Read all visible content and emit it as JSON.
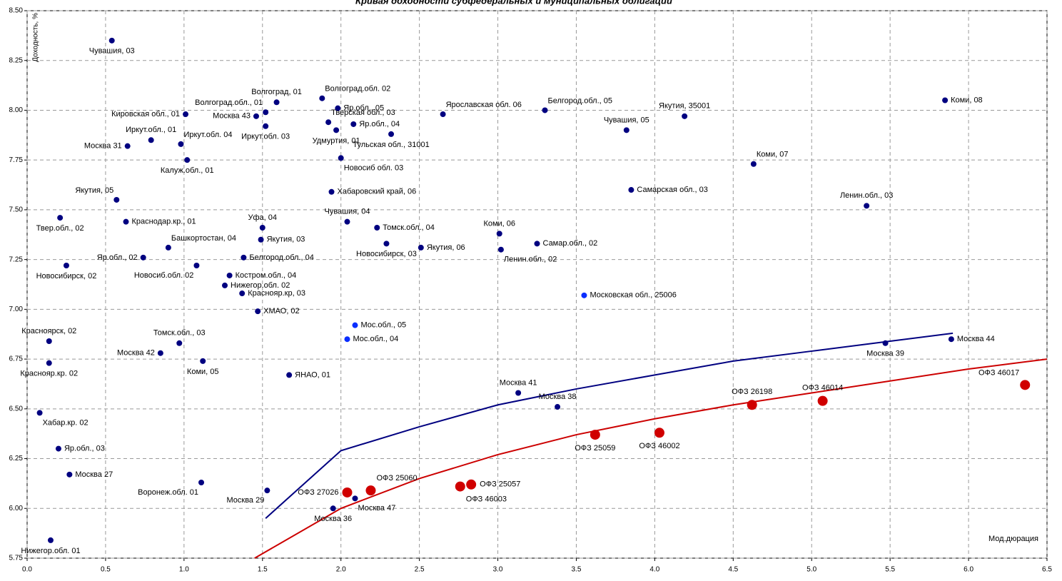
{
  "chart_data": {
    "type": "scatter",
    "title": "Кривая доходности субфедеральных и муниципальных облигаций",
    "y_label": "Доходность, %",
    "x_label": "Мод.дюрация",
    "xlim": [
      0,
      6.5
    ],
    "ylim": [
      5.75,
      8.5
    ],
    "xticks": [
      {
        "value": 0,
        "label": "0.0"
      },
      0.5,
      {
        "value": 1,
        "label": "1.0"
      },
      1.5,
      {
        "value": 2,
        "label": "2.0"
      },
      2.5,
      {
        "value": 3,
        "label": "3.0"
      },
      3.5,
      {
        "value": 4,
        "label": "4.0"
      },
      4.5,
      {
        "value": 5,
        "label": "5.0"
      },
      5.5,
      {
        "value": 6,
        "label": "6.0"
      },
      6.5
    ],
    "yticks": [
      {
        "value": 5.75,
        "label": "5.75"
      },
      {
        "value": 6,
        "label": "6.00"
      },
      {
        "value": 6.25,
        "label": "6.25"
      },
      {
        "value": 6.5,
        "label": "6.50"
      },
      {
        "value": 6.75,
        "label": "6.75"
      },
      {
        "value": 7,
        "label": "7.00"
      },
      {
        "value": 7.25,
        "label": "7.25"
      },
      {
        "value": 7.5,
        "label": "7.50"
      },
      {
        "value": 7.75,
        "label": "7.75"
      },
      {
        "value": 8,
        "label": "8.00"
      },
      {
        "value": 8.25,
        "label": "8.25"
      },
      {
        "value": 8.5,
        "label": "8.50"
      }
    ],
    "grid": true,
    "series": [
      {
        "color": "#000080",
        "labels": [
          "Чувашия, 03",
          "Коми, 08",
          "Волгоград.обл. 02",
          "Волгоград, 01",
          "Яр.обл., 05",
          "Волгоград.обл., 01",
          "Москва 43",
          "Кировская обл., 01",
          "Ярославская обл. 06",
          "Белгород.обл., 05",
          "Якутия, 35001",
          "Тверская обл., 03",
          "Иркут.обл. 03",
          "Яр.обл., 04",
          "Удмуртия, 01",
          "Чувашия, 05",
          "Тульская обл., 31001",
          "Иркут.обл., 01",
          "Москва 31",
          "Иркут.обл. 04",
          "Калуж.обл., 01",
          "Новосиб обл. 03",
          "Коми, 07",
          "Якутия, 05",
          "Хабаровский край, 06",
          "Самарская обл., 03",
          "Ленин.обл., 03",
          "Твер.обл., 02",
          "Краснодар.кр., 01",
          "Чувашия, 04",
          "Томск.обл., 04",
          "Уфа, 04",
          "Коми, 06",
          "Якутия, 03",
          "Самар.обл., 02",
          "Новосибирск, 03",
          "Якутия, 06",
          "Башкортостан, 04",
          "Ленин.обл., 02",
          "Яр.обл., 02",
          "Белгород.обл., 04",
          "Новосибирск, 02",
          "Новосиб.обл. 02",
          "Костром.обл., 04",
          "Нижегор.обл. 02",
          "Краснояр.кр, 03",
          "ХМАО, 02",
          "Красноярск, 02",
          "Томск.обл., 03",
          "Москва 39",
          "Москва 44",
          "Москва 42",
          "Коми, 05",
          "Краснояр.кр. 02",
          "ЯНАО, 01",
          "Москва 41",
          "Москва 38",
          "Хабар.кр. 02",
          "Яр.обл., 03",
          "Москва 27",
          "Воронеж.обл. 01",
          "Москва 29",
          "Москва 47",
          "Москва 36",
          "Нижегор.обл. 01"
        ],
        "x": [
          0.54,
          5.85,
          1.88,
          1.59,
          1.98,
          1.52,
          1.46,
          1.01,
          2.65,
          3.3,
          4.19,
          1.92,
          1.52,
          2.08,
          1.97,
          3.82,
          2.32,
          0.79,
          0.64,
          0.98,
          1.02,
          2.0,
          4.63,
          0.57,
          1.94,
          3.85,
          5.35,
          0.21,
          0.63,
          2.04,
          2.23,
          1.5,
          3.01,
          1.49,
          3.25,
          2.29,
          2.51,
          0.9,
          3.02,
          0.74,
          1.38,
          0.25,
          1.08,
          1.29,
          1.26,
          1.37,
          1.47,
          0.14,
          0.97,
          5.47,
          5.89,
          0.85,
          1.12,
          0.14,
          1.67,
          3.13,
          3.38,
          0.08,
          0.2,
          0.27,
          1.11,
          1.53,
          2.09,
          1.95,
          0.15
        ],
        "values": [
          8.35,
          8.05,
          8.06,
          8.04,
          8.01,
          7.99,
          7.97,
          7.98,
          7.98,
          8.0,
          7.97,
          7.94,
          7.92,
          7.93,
          7.9,
          7.9,
          7.88,
          7.85,
          7.82,
          7.83,
          7.75,
          7.76,
          7.73,
          7.55,
          7.59,
          7.6,
          7.52,
          7.46,
          7.44,
          7.44,
          7.41,
          7.41,
          7.38,
          7.35,
          7.33,
          7.33,
          7.31,
          7.31,
          7.3,
          7.26,
          7.26,
          7.22,
          7.22,
          7.17,
          7.12,
          7.08,
          6.99,
          6.84,
          6.83,
          6.83,
          6.85,
          6.78,
          6.74,
          6.73,
          6.67,
          6.58,
          6.51,
          6.48,
          6.3,
          6.17,
          6.13,
          6.09,
          6.05,
          6.0,
          5.84
        ]
      },
      {
        "color": "#0a2eff",
        "labels": [
          "Московская обл., 25006",
          "Мос.обл., 05",
          "Мос.обл., 04"
        ],
        "x": [
          3.55,
          2.09,
          2.04
        ],
        "values": [
          7.07,
          6.92,
          6.85
        ]
      },
      {
        "color": "#d00000",
        "labels": [
          "ОФЗ 27026",
          "ОФЗ 25060",
          "ОФЗ 25057",
          "ОФЗ 46003",
          "ОФЗ 25059",
          "ОФЗ 46002",
          "ОФЗ 26198",
          "ОФЗ 46014",
          "ОФЗ 46017"
        ],
        "x": [
          2.04,
          2.19,
          2.83,
          2.76,
          3.62,
          4.03,
          4.62,
          5.07,
          6.36
        ],
        "values": [
          6.08,
          6.09,
          6.12,
          6.11,
          6.37,
          6.38,
          6.52,
          6.54,
          6.62
        ]
      }
    ],
    "curves": [
      {
        "color": "#000080",
        "x": [
          1.52,
          2,
          2.5,
          3,
          3.5,
          4,
          4.5,
          5,
          5.5,
          5.9
        ],
        "values": [
          5.95,
          6.29,
          6.41,
          6.52,
          6.6,
          6.67,
          6.74,
          6.79,
          6.84,
          6.88
        ]
      },
      {
        "color": "#cc0000",
        "x": [
          1.45,
          2,
          2.5,
          3,
          3.5,
          4,
          4.5,
          5,
          5.5,
          6,
          6.5
        ],
        "values": [
          5.75,
          6.0,
          6.15,
          6.27,
          6.37,
          6.45,
          6.52,
          6.58,
          6.64,
          6.7,
          6.75
        ]
      }
    ]
  }
}
